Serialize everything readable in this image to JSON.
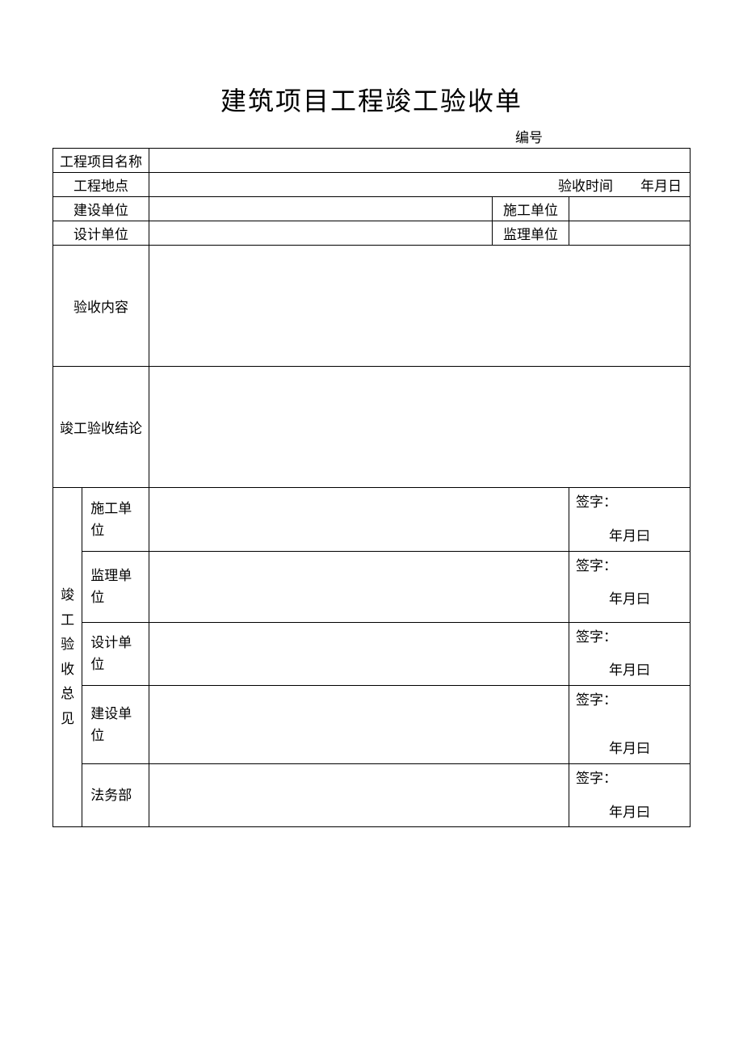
{
  "title": "建筑项目工程竣工验收单",
  "docNumberLabel": "编号",
  "rows": {
    "projectName": "工程项目名称",
    "projectLocation": "工程地点",
    "acceptanceTimeLabel": "验收时间",
    "dateFormat": "年月日",
    "constructionOwner": "建设单位",
    "constructionContractor": "施工单位",
    "designUnit": "设计单位",
    "supervisionUnit": "监理单位",
    "acceptanceContent": "验收内容",
    "acceptanceConclusion": "竣工验收结论"
  },
  "summarySection": {
    "verticalLabel": "竣工验收总见",
    "signatureLabel": "签字：",
    "signatureDate": "年月曰",
    "units": {
      "contractor": "施工单位",
      "supervision": "监理单位",
      "design": "设计单位",
      "owner": "建设单位",
      "legal": "法务部"
    }
  },
  "styling": {
    "backgroundColor": "#ffffff",
    "textColor": "#000000",
    "borderColor": "#000000",
    "titleFontSize": 32,
    "bodyFontSize": 17,
    "fontFamily": "SimSun"
  }
}
